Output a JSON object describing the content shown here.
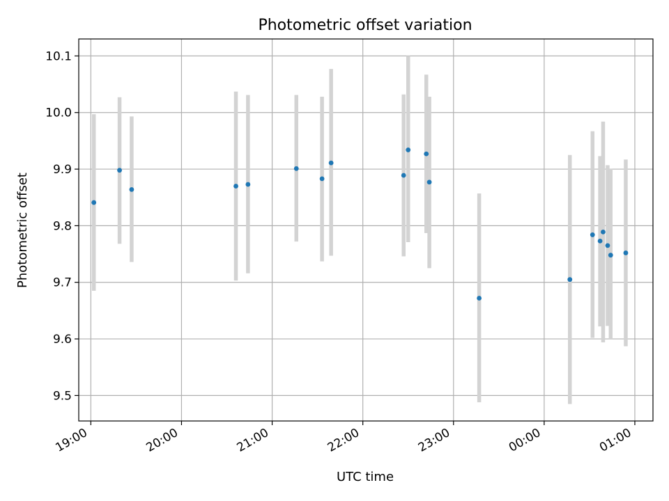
{
  "chart_data": {
    "type": "scatter",
    "title": "Photometric offset variation",
    "xlabel": "UTC time",
    "ylabel": "Photometric offset",
    "grid": true,
    "colors": {
      "point": "#1f77b4",
      "errorbar": "#d3d3d3",
      "grid": "#b0b0b0"
    },
    "xlim": [
      "18:52",
      "01:12"
    ],
    "ylim": [
      9.455,
      10.13
    ],
    "x_ticks": [
      "19:00",
      "20:00",
      "21:00",
      "22:00",
      "23:00",
      "00:00",
      "01:00"
    ],
    "y_ticks": [
      9.5,
      9.6,
      9.7,
      9.8,
      9.9,
      10.0,
      10.1
    ],
    "y_tick_labels": [
      "9.5",
      "9.6",
      "9.7",
      "9.8",
      "9.9",
      "10.0",
      "10.1"
    ],
    "points": [
      {
        "x": "19:02",
        "y": 9.841,
        "ylow": 9.685,
        "yhigh": 9.997
      },
      {
        "x": "19:19",
        "y": 9.898,
        "ylow": 9.768,
        "yhigh": 10.027
      },
      {
        "x": "19:27",
        "y": 9.864,
        "ylow": 9.736,
        "yhigh": 9.993
      },
      {
        "x": "20:36",
        "y": 9.87,
        "ylow": 9.703,
        "yhigh": 10.037
      },
      {
        "x": "20:44",
        "y": 9.873,
        "ylow": 9.716,
        "yhigh": 10.031
      },
      {
        "x": "21:16",
        "y": 9.901,
        "ylow": 9.772,
        "yhigh": 10.031
      },
      {
        "x": "21:33",
        "y": 9.883,
        "ylow": 9.737,
        "yhigh": 10.028
      },
      {
        "x": "21:39",
        "y": 9.911,
        "ylow": 9.747,
        "yhigh": 10.077
      },
      {
        "x": "22:27",
        "y": 9.889,
        "ylow": 9.746,
        "yhigh": 10.032
      },
      {
        "x": "22:30",
        "y": 9.934,
        "ylow": 9.771,
        "yhigh": 10.1
      },
      {
        "x": "22:42",
        "y": 9.927,
        "ylow": 9.787,
        "yhigh": 10.067
      },
      {
        "x": "22:44",
        "y": 9.877,
        "ylow": 9.725,
        "yhigh": 10.028
      },
      {
        "x": "23:17",
        "y": 9.672,
        "ylow": 9.488,
        "yhigh": 9.857
      },
      {
        "x": "00:17",
        "y": 9.705,
        "ylow": 9.485,
        "yhigh": 9.925
      },
      {
        "x": "00:32",
        "y": 9.784,
        "ylow": 9.602,
        "yhigh": 9.967
      },
      {
        "x": "00:37",
        "y": 9.773,
        "ylow": 9.622,
        "yhigh": 9.923
      },
      {
        "x": "00:39",
        "y": 9.789,
        "ylow": 9.594,
        "yhigh": 9.984
      },
      {
        "x": "00:42",
        "y": 9.765,
        "ylow": 9.623,
        "yhigh": 9.907
      },
      {
        "x": "00:44",
        "y": 9.748,
        "ylow": 9.6,
        "yhigh": 9.901
      },
      {
        "x": "00:54",
        "y": 9.752,
        "ylow": 9.587,
        "yhigh": 9.917
      }
    ]
  }
}
